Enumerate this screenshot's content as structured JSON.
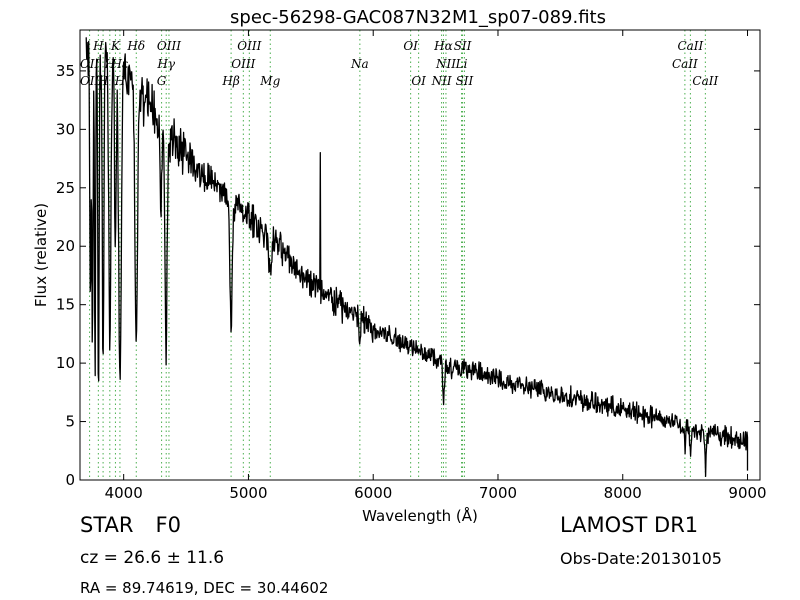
{
  "chart_data": {
    "type": "line",
    "title": "spec-56298-GAC087N32M1_sp07-089.fits",
    "xlabel": "Wavelength (Å)",
    "ylabel": "Flux (relative)",
    "xlim": [
      3650,
      9100
    ],
    "ylim": [
      0,
      38.5
    ],
    "xticks": [
      4000,
      5000,
      6000,
      7000,
      8000,
      9000
    ],
    "yticks": [
      0,
      5,
      10,
      15,
      20,
      25,
      30,
      35
    ],
    "grid": false,
    "line_color": "#000000",
    "marker_color": "#4caf50",
    "continuum": [
      [
        3700,
        36
      ],
      [
        3800,
        36
      ],
      [
        3900,
        35
      ],
      [
        4000,
        34.5
      ],
      [
        4100,
        33.5
      ],
      [
        4200,
        32
      ],
      [
        4300,
        30
      ],
      [
        4400,
        29
      ],
      [
        4500,
        28
      ],
      [
        4600,
        26.5
      ],
      [
        4700,
        25.5
      ],
      [
        4800,
        24.5
      ],
      [
        4900,
        23.5
      ],
      [
        5000,
        22.5
      ],
      [
        5200,
        20.5
      ],
      [
        5400,
        18
      ],
      [
        5600,
        16
      ],
      [
        5800,
        14.5
      ],
      [
        6000,
        13
      ],
      [
        6200,
        12
      ],
      [
        6400,
        11
      ],
      [
        6600,
        9.8
      ],
      [
        6800,
        9.3
      ],
      [
        7000,
        8.6
      ],
      [
        7200,
        8
      ],
      [
        7400,
        7.5
      ],
      [
        7600,
        7
      ],
      [
        7800,
        6.5
      ],
      [
        8000,
        6
      ],
      [
        8200,
        5.5
      ],
      [
        8400,
        5
      ],
      [
        8600,
        4.3
      ],
      [
        8800,
        3.8
      ],
      [
        9000,
        3.3
      ]
    ],
    "absorption_features": [
      {
        "center": 3734,
        "depth": 20,
        "width": 5
      },
      {
        "center": 3750,
        "depth": 24,
        "width": 5
      },
      {
        "center": 3771,
        "depth": 28,
        "width": 4
      },
      {
        "center": 3798,
        "depth": 30,
        "width": 5
      },
      {
        "center": 3835,
        "depth": 26,
        "width": 6
      },
      {
        "center": 3889,
        "depth": 24,
        "width": 8
      },
      {
        "center": 3933,
        "depth": 16,
        "width": 6
      },
      {
        "center": 3970,
        "depth": 26,
        "width": 10
      },
      {
        "center": 4101,
        "depth": 21,
        "width": 10
      },
      {
        "center": 4300,
        "depth": 6,
        "width": 8
      },
      {
        "center": 4340,
        "depth": 18,
        "width": 9
      },
      {
        "center": 4861,
        "depth": 11,
        "width": 9
      },
      {
        "center": 5175,
        "depth": 3,
        "width": 10
      },
      {
        "center": 5890,
        "depth": 2,
        "width": 6
      },
      {
        "center": 6563,
        "depth": 3.5,
        "width": 6
      },
      {
        "center": 8498,
        "depth": 1.8,
        "width": 6
      },
      {
        "center": 8542,
        "depth": 2.2,
        "width": 6
      },
      {
        "center": 8662,
        "depth": 3,
        "width": 6
      }
    ],
    "emission_spikes": [
      {
        "x": 5577,
        "y": 28
      }
    ],
    "spectral_lines": [
      {
        "label": "OII",
        "x": 3727,
        "row": 2
      },
      {
        "label": "OII",
        "x": 3727,
        "row": 3
      },
      {
        "label": "H",
        "x": 3797,
        "row": 1
      },
      {
        "label": "K",
        "x": 3934,
        "row": 1
      },
      {
        "label": "H",
        "x": 3970,
        "row": 3
      },
      {
        "label": "H",
        "x": 3835,
        "row": 3
      },
      {
        "label": "H",
        "x": 3889,
        "row": 2
      },
      {
        "label": "Hδ",
        "x": 4101,
        "row": 1
      },
      {
        "label": "Hε",
        "x": 3970,
        "row": 2
      },
      {
        "label": "G",
        "x": 4304,
        "row": 3
      },
      {
        "label": "Hγ",
        "x": 4341,
        "row": 2
      },
      {
        "label": "OIII",
        "x": 4363,
        "row": 1
      },
      {
        "label": "Hβ",
        "x": 4861,
        "row": 3
      },
      {
        "label": "OIII",
        "x": 4959,
        "row": 2
      },
      {
        "label": "OIII",
        "x": 5007,
        "row": 1
      },
      {
        "label": "Mg",
        "x": 5175,
        "row": 3
      },
      {
        "label": "Na",
        "x": 5893,
        "row": 2
      },
      {
        "label": "OI",
        "x": 6300,
        "row": 1
      },
      {
        "label": "OI",
        "x": 6364,
        "row": 3
      },
      {
        "label": "NII",
        "x": 6548,
        "row": 3
      },
      {
        "label": "Hα",
        "x": 6563,
        "row": 1
      },
      {
        "label": "NII",
        "x": 6583,
        "row": 2
      },
      {
        "label": "Li",
        "x": 6708,
        "row": 2
      },
      {
        "label": "SII",
        "x": 6716,
        "row": 1
      },
      {
        "label": "SII",
        "x": 6731,
        "row": 3
      },
      {
        "label": "CaII",
        "x": 8498,
        "row": 2
      },
      {
        "label": "CaII",
        "x": 8542,
        "row": 1
      },
      {
        "label": "CaII",
        "x": 8662,
        "row": 3
      }
    ]
  },
  "info": {
    "class": "STAR",
    "subclass": "F0",
    "redshift": "cz = 26.6 ± 11.6",
    "coordinates": "RA = 89.74619, DEC = 30.44602",
    "survey": "LAMOST DR1",
    "obs_date": "Obs-Date:20130105"
  }
}
